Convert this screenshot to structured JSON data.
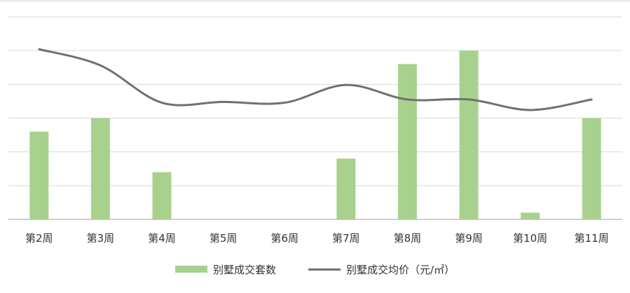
{
  "chart_data": {
    "type": "bar+line",
    "categories": [
      "第2周",
      "第3周",
      "第4周",
      "第5周",
      "第6周",
      "第7周",
      "第8周",
      "第9周",
      "第10周",
      "第11周"
    ],
    "series": [
      {
        "name": "别墅成交套数",
        "type": "bar",
        "color": "#a9d18e",
        "axis": "left",
        "values": [
          13,
          15,
          7,
          0,
          0,
          9,
          23,
          25,
          1,
          15
        ]
      },
      {
        "name": "别墅成交均价（元/㎡）",
        "type": "line",
        "color": "#707070",
        "axis": "right",
        "values": [
          26000,
          24000,
          19400,
          19500,
          19400,
          21600,
          19800,
          19800,
          18500,
          19800
        ]
      }
    ],
    "ylim_left": [
      0,
      30
    ],
    "ylim_right": [
      5000,
      30000
    ],
    "gridlines": 6,
    "tick_labels_y": "hidden",
    "legend": "bottom-center"
  }
}
